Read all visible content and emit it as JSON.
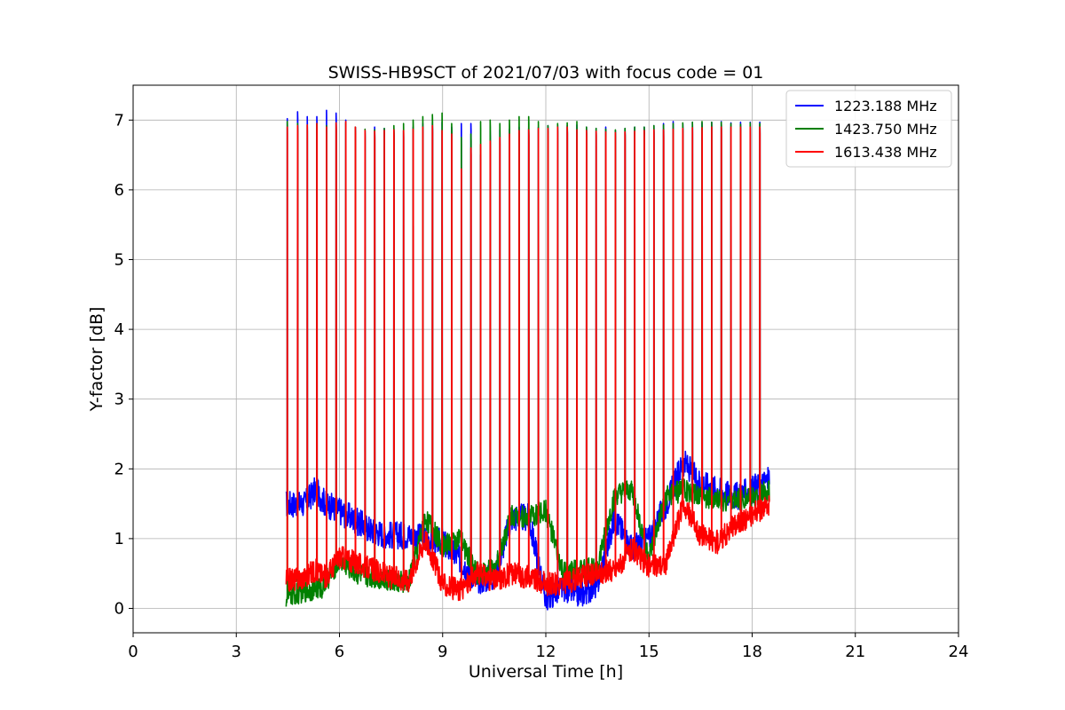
{
  "chart_data": {
    "type": "line",
    "title": "SWISS-HB9SCT of 2021/07/03 with focus code = 01",
    "xlabel": "Universal Time [h]",
    "ylabel": "Y-factor [dB]",
    "xlim": [
      0,
      24
    ],
    "ylim": [
      -0.35,
      7.5
    ],
    "xticks": [
      0,
      3,
      6,
      9,
      12,
      15,
      18,
      21,
      24
    ],
    "yticks": [
      0,
      1,
      2,
      3,
      4,
      5,
      6,
      7
    ],
    "grid": true,
    "legend_position": "top-right",
    "spike_times": [
      4.48,
      4.78,
      5.06,
      5.34,
      5.62,
      5.9,
      6.18,
      6.46,
      6.74,
      7.02,
      7.3,
      7.58,
      7.86,
      8.14,
      8.42,
      8.7,
      8.98,
      9.26,
      9.54,
      9.82,
      10.1,
      10.38,
      10.66,
      10.94,
      11.22,
      11.5,
      11.78,
      12.06,
      12.34,
      12.62,
      12.9,
      13.18,
      13.46,
      13.74,
      14.02,
      14.3,
      14.58,
      14.86,
      15.14,
      15.42,
      15.7,
      15.98,
      16.26,
      16.54,
      16.82,
      17.1,
      17.38,
      17.66,
      17.94,
      18.22
    ],
    "series": [
      {
        "name": "1223.188 MHz",
        "color": "#0000ff",
        "band": 0.2,
        "baseline_x": [
          4.45,
          5.0,
          5.3,
          5.6,
          6.0,
          6.5,
          7.0,
          7.5,
          8.0,
          8.5,
          9.0,
          9.5,
          10.0,
          10.5,
          11.0,
          11.5,
          12.0,
          12.5,
          13.0,
          13.5,
          14.0,
          14.5,
          15.0,
          15.5,
          16.0,
          16.5,
          17.0,
          17.5,
          18.0,
          18.5
        ],
        "baseline_y": [
          1.5,
          1.5,
          1.7,
          1.5,
          1.4,
          1.25,
          1.1,
          1.05,
          1.05,
          1.0,
          0.95,
          0.7,
          0.4,
          0.45,
          1.3,
          1.3,
          0.15,
          0.3,
          0.2,
          0.35,
          1.3,
          0.85,
          1.0,
          1.5,
          2.1,
          1.8,
          1.7,
          1.6,
          1.7,
          1.85
        ],
        "peaks": [
          7.02,
          7.12,
          7.05,
          7.05,
          7.14,
          7.1,
          7.0,
          6.9,
          6.85,
          6.9,
          6.88,
          6.87,
          6.85,
          6.9,
          6.95,
          6.96,
          6.97,
          6.9,
          6.95,
          6.95,
          6.5,
          6.85,
          6.86,
          6.87,
          6.9,
          6.88,
          6.9,
          6.92,
          6.93,
          6.92,
          6.93,
          6.9,
          6.88,
          6.9,
          6.85,
          6.88,
          6.9,
          6.9,
          6.92,
          6.95,
          6.98,
          6.95,
          6.97,
          6.96,
          6.97,
          6.98,
          6.96,
          6.97,
          6.97,
          6.97
        ]
      },
      {
        "name": "1423.750 MHz",
        "color": "#008000",
        "band": 0.16,
        "baseline_x": [
          4.45,
          5.0,
          5.5,
          6.0,
          6.5,
          7.0,
          7.5,
          8.0,
          8.5,
          9.0,
          9.5,
          10.0,
          10.5,
          11.0,
          11.5,
          12.0,
          12.5,
          13.0,
          13.5,
          14.0,
          14.5,
          15.0,
          15.5,
          16.0,
          16.5,
          17.0,
          17.5,
          18.0,
          18.5
        ],
        "baseline_y": [
          0.15,
          0.25,
          0.3,
          0.7,
          0.5,
          0.45,
          0.4,
          0.35,
          1.3,
          0.9,
          1.0,
          0.5,
          0.55,
          1.35,
          1.3,
          1.4,
          0.5,
          0.55,
          0.6,
          1.6,
          1.7,
          0.7,
          1.6,
          1.7,
          1.6,
          1.55,
          1.55,
          1.6,
          1.7
        ],
        "peaks": [
          6.98,
          6.95,
          6.93,
          6.95,
          6.92,
          6.96,
          6.96,
          6.9,
          6.87,
          6.86,
          6.88,
          6.92,
          6.95,
          7.0,
          7.05,
          7.08,
          7.1,
          6.95,
          6.75,
          6.8,
          6.98,
          7.0,
          6.95,
          7.0,
          7.05,
          7.05,
          6.98,
          6.92,
          6.95,
          6.96,
          6.98,
          6.9,
          6.88,
          6.87,
          6.86,
          6.88,
          6.9,
          6.9,
          6.92,
          6.93,
          6.95,
          6.96,
          6.97,
          6.98,
          6.97,
          6.97,
          6.95,
          6.94,
          6.96,
          6.95
        ]
      },
      {
        "name": "1613.438 MHz",
        "color": "#ff0000",
        "band": 0.17,
        "baseline_x": [
          4.45,
          5.0,
          5.3,
          5.6,
          6.0,
          6.5,
          7.0,
          7.5,
          8.0,
          8.5,
          9.0,
          9.5,
          10.0,
          10.5,
          11.0,
          11.5,
          12.0,
          12.5,
          13.0,
          13.5,
          14.0,
          14.5,
          15.0,
          15.5,
          16.0,
          16.5,
          17.0,
          17.5,
          18.0,
          18.5
        ],
        "baseline_y": [
          0.4,
          0.45,
          0.55,
          0.45,
          0.75,
          0.65,
          0.55,
          0.45,
          0.4,
          1.0,
          0.35,
          0.25,
          0.5,
          0.4,
          0.5,
          0.45,
          0.35,
          0.35,
          0.45,
          0.5,
          0.55,
          0.85,
          0.6,
          0.65,
          1.5,
          1.05,
          0.95,
          1.2,
          1.35,
          1.45
        ],
        "peaks": [
          6.9,
          6.92,
          6.93,
          6.95,
          6.9,
          6.96,
          6.98,
          6.9,
          6.85,
          6.84,
          6.85,
          6.86,
          6.85,
          6.87,
          6.9,
          6.92,
          6.85,
          6.8,
          6.3,
          6.6,
          6.65,
          6.7,
          6.75,
          6.8,
          6.85,
          6.86,
          6.88,
          6.88,
          6.9,
          6.9,
          6.86,
          6.85,
          6.84,
          6.83,
          6.82,
          6.83,
          6.84,
          6.85,
          6.86,
          6.86,
          6.87,
          6.88,
          6.89,
          6.89,
          6.9,
          6.9,
          6.9,
          6.9,
          6.9,
          6.9
        ]
      }
    ]
  }
}
